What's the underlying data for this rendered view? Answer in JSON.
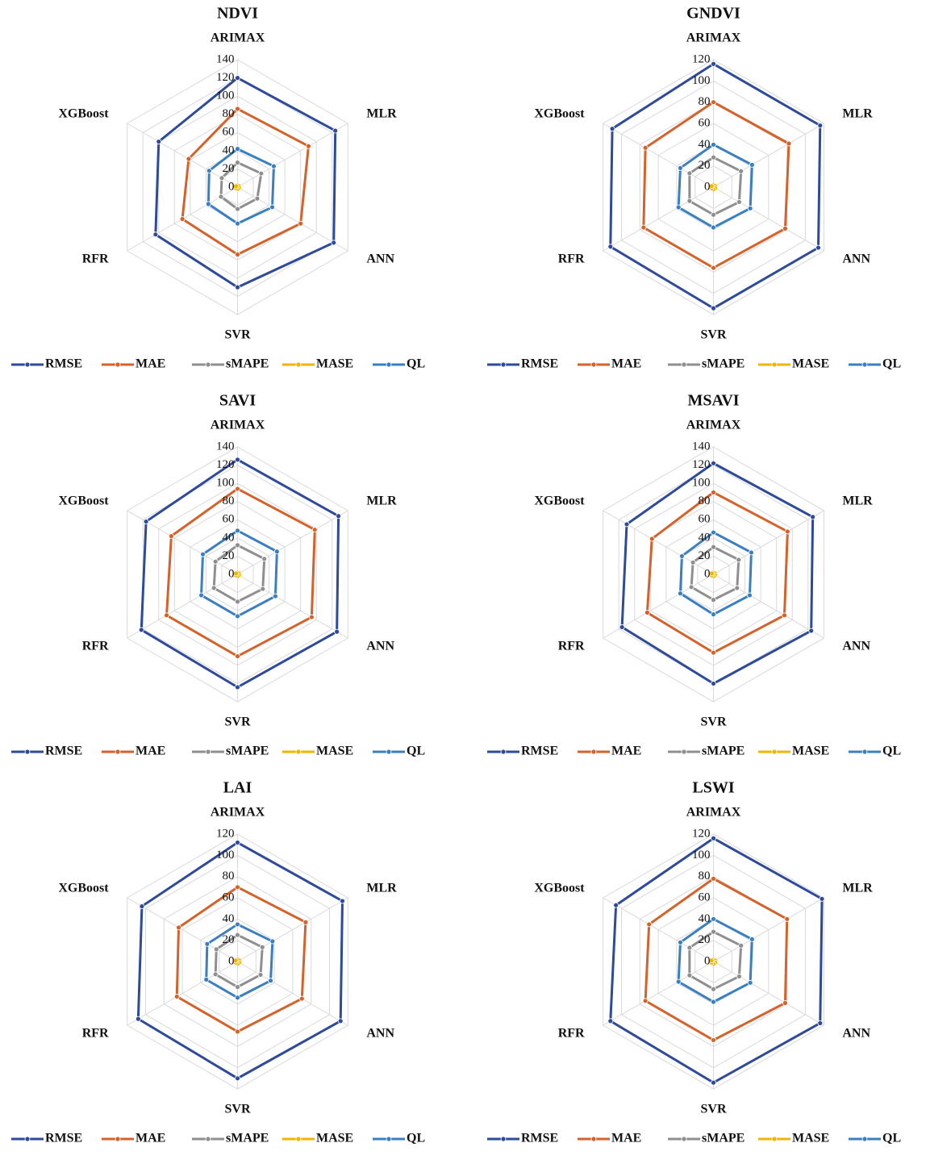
{
  "chart_data": [
    {
      "type": "radar",
      "title": "NDVI",
      "categories": [
        "ARIMAX",
        "MLR",
        "ANN",
        "SVR",
        "RFR",
        "XGBoost"
      ],
      "ylim": [
        0,
        140
      ],
      "yticks": [
        0,
        20,
        40,
        60,
        80,
        100,
        120,
        140
      ],
      "grid": true,
      "series": [
        {
          "name": "RMSE",
          "color": "#2e4a9a",
          "values": [
            120,
            124,
            122,
            110,
            104,
            100
          ]
        },
        {
          "name": "MAE",
          "color": "#d4622a",
          "values": [
            86,
            90,
            80,
            74,
            70,
            62
          ]
        },
        {
          "name": "sMAPE",
          "color": "#8f8f8f",
          "values": [
            27,
            30,
            25,
            24,
            21,
            20
          ]
        },
        {
          "name": "MASE",
          "color": "#f2b400",
          "values": [
            2,
            2,
            2,
            2,
            2,
            2
          ]
        },
        {
          "name": "QL",
          "color": "#3a7fc1",
          "values": [
            42,
            46,
            44,
            40,
            37,
            36
          ]
        }
      ]
    },
    {
      "type": "radar",
      "title": "GNDVI",
      "categories": [
        "ARIMAX",
        "MLR",
        "ANN",
        "SVR",
        "RFR",
        "XGBoost"
      ],
      "ylim": [
        0,
        120
      ],
      "yticks": [
        0,
        20,
        40,
        60,
        80,
        100,
        120
      ],
      "grid": true,
      "series": [
        {
          "name": "RMSE",
          "color": "#2e4a9a",
          "values": [
            116,
            116,
            114,
            114,
            112,
            110
          ]
        },
        {
          "name": "MAE",
          "color": "#d4622a",
          "values": [
            80,
            82,
            78,
            76,
            76,
            74
          ]
        },
        {
          "name": "sMAPE",
          "color": "#8f8f8f",
          "values": [
            28,
            30,
            28,
            26,
            26,
            26
          ]
        },
        {
          "name": "MASE",
          "color": "#f2b400",
          "values": [
            2,
            2,
            2,
            2,
            2,
            2
          ]
        },
        {
          "name": "QL",
          "color": "#3a7fc1",
          "values": [
            40,
            42,
            40,
            38,
            38,
            36
          ]
        }
      ]
    },
    {
      "type": "radar",
      "title": "SAVI",
      "categories": [
        "ARIMAX",
        "MLR",
        "ANN",
        "SVR",
        "RFR",
        "XGBoost"
      ],
      "ylim": [
        0,
        140
      ],
      "yticks": [
        0,
        20,
        40,
        60,
        80,
        100,
        120,
        140
      ],
      "grid": true,
      "series": [
        {
          "name": "RMSE",
          "color": "#2e4a9a",
          "values": [
            126,
            128,
            126,
            124,
            122,
            116
          ]
        },
        {
          "name": "MAE",
          "color": "#d4622a",
          "values": [
            94,
            98,
            94,
            90,
            90,
            84
          ]
        },
        {
          "name": "sMAPE",
          "color": "#8f8f8f",
          "values": [
            32,
            34,
            32,
            30,
            30,
            28
          ]
        },
        {
          "name": "MASE",
          "color": "#f2b400",
          "values": [
            2,
            2,
            2,
            2,
            2,
            2
          ]
        },
        {
          "name": "QL",
          "color": "#3a7fc1",
          "values": [
            48,
            50,
            48,
            46,
            46,
            44
          ]
        }
      ]
    },
    {
      "type": "radar",
      "title": "MSAVI",
      "categories": [
        "ARIMAX",
        "MLR",
        "ANN",
        "SVR",
        "RFR",
        "XGBoost"
      ],
      "ylim": [
        0,
        140
      ],
      "yticks": [
        0,
        20,
        40,
        60,
        80,
        100,
        120,
        140
      ],
      "grid": true,
      "series": [
        {
          "name": "RMSE",
          "color": "#2e4a9a",
          "values": [
            122,
            126,
            124,
            120,
            116,
            110
          ]
        },
        {
          "name": "MAE",
          "color": "#d4622a",
          "values": [
            90,
            94,
            90,
            86,
            84,
            78
          ]
        },
        {
          "name": "sMAPE",
          "color": "#8f8f8f",
          "values": [
            30,
            32,
            30,
            28,
            28,
            26
          ]
        },
        {
          "name": "MASE",
          "color": "#f2b400",
          "values": [
            2,
            2,
            2,
            2,
            2,
            2
          ]
        },
        {
          "name": "QL",
          "color": "#3a7fc1",
          "values": [
            46,
            48,
            46,
            44,
            42,
            40
          ]
        }
      ]
    },
    {
      "type": "radar",
      "title": "LAI",
      "categories": [
        "ARIMAX",
        "MLR",
        "ANN",
        "SVR",
        "RFR",
        "XGBoost"
      ],
      "ylim": [
        0,
        120
      ],
      "yticks": [
        0,
        20,
        40,
        60,
        80,
        100,
        120
      ],
      "grid": true,
      "series": [
        {
          "name": "RMSE",
          "color": "#2e4a9a",
          "values": [
            112,
            114,
            112,
            110,
            108,
            104
          ]
        },
        {
          "name": "MAE",
          "color": "#d4622a",
          "values": [
            70,
            74,
            70,
            66,
            66,
            64
          ]
        },
        {
          "name": "sMAPE",
          "color": "#8f8f8f",
          "values": [
            25,
            27,
            25,
            24,
            24,
            23
          ]
        },
        {
          "name": "MASE",
          "color": "#f2b400",
          "values": [
            2,
            2,
            2,
            2,
            2,
            2
          ]
        },
        {
          "name": "QL",
          "color": "#3a7fc1",
          "values": [
            35,
            38,
            36,
            34,
            34,
            33
          ]
        }
      ]
    },
    {
      "type": "radar",
      "title": "LSWI",
      "categories": [
        "ARIMAX",
        "MLR",
        "ANN",
        "SVR",
        "RFR",
        "XGBoost"
      ],
      "ylim": [
        0,
        120
      ],
      "yticks": [
        0,
        20,
        40,
        60,
        80,
        100,
        120
      ],
      "grid": true,
      "series": [
        {
          "name": "RMSE",
          "color": "#2e4a9a",
          "values": [
            116,
            118,
            116,
            114,
            112,
            106
          ]
        },
        {
          "name": "MAE",
          "color": "#d4622a",
          "values": [
            78,
            80,
            78,
            74,
            74,
            70
          ]
        },
        {
          "name": "sMAPE",
          "color": "#8f8f8f",
          "values": [
            28,
            30,
            28,
            26,
            26,
            26
          ]
        },
        {
          "name": "MASE",
          "color": "#f2b400",
          "values": [
            2,
            2,
            2,
            2,
            2,
            2
          ]
        },
        {
          "name": "QL",
          "color": "#3a7fc1",
          "values": [
            40,
            42,
            40,
            38,
            38,
            36
          ]
        }
      ]
    }
  ]
}
